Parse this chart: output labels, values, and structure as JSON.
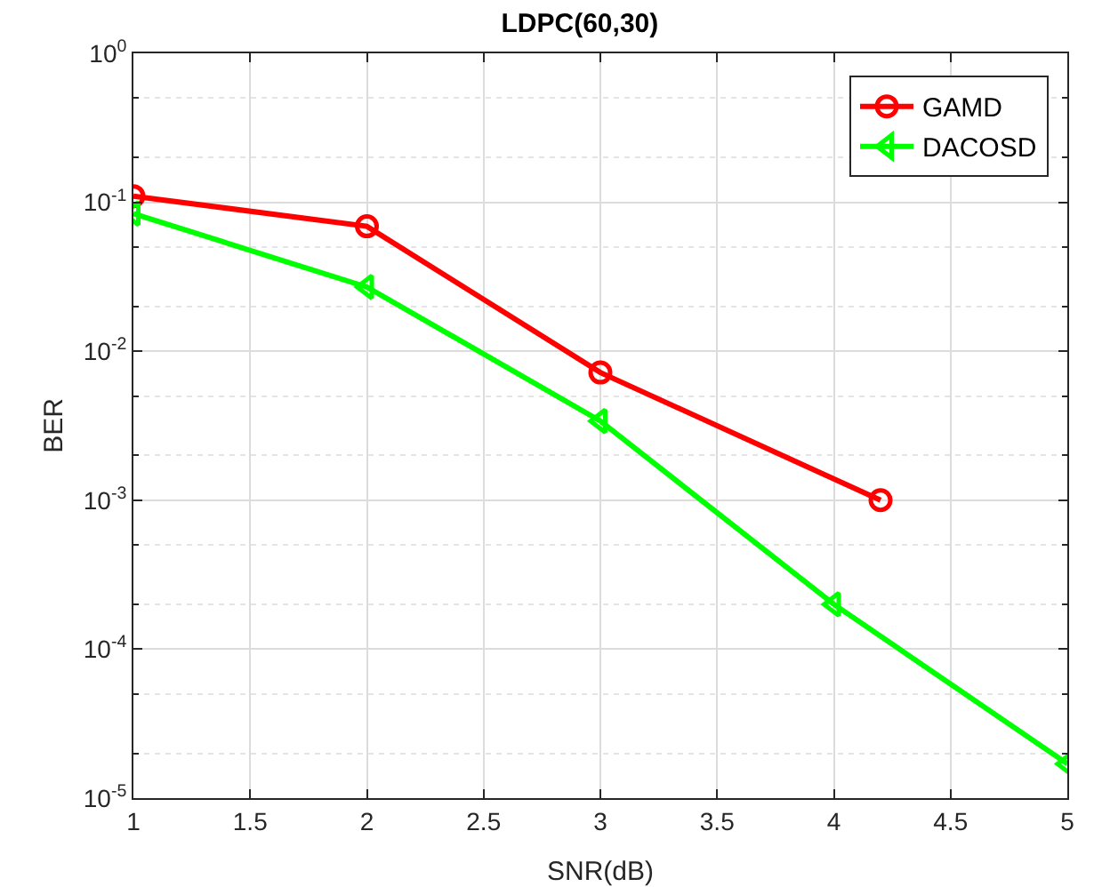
{
  "chart_data": {
    "type": "line",
    "title": "LDPC(60,30)",
    "xlabel": "SNR(dB)",
    "ylabel": "BER",
    "log": "y",
    "grid": true,
    "legend": "top right",
    "line_style": "solid",
    "xlim": [
      1,
      5
    ],
    "xticks": [
      1,
      1.5,
      2,
      2.5,
      3,
      3.5,
      4,
      4.5,
      5
    ],
    "ylim": [
      1e-05,
      1
    ],
    "yticks": [
      {
        "value": 1e-05,
        "label": "10$^{-5}$"
      },
      {
        "value": 0.0001,
        "label": "10$^{-4}$"
      },
      {
        "value": 0.001,
        "label": "10$^{-3}$"
      },
      {
        "value": 0.01,
        "label": "10$^{-2}$"
      },
      {
        "value": 0.1,
        "label": "10$^{-1}$"
      },
      {
        "value": 1,
        "label": "10$^{0}$"
      }
    ],
    "series": [
      {
        "name": "GAMD",
        "color": "#ff0000",
        "marker": "circle",
        "x": [
          1,
          2,
          3,
          4.2
        ],
        "values": [
          0.11,
          0.069,
          0.0072,
          0.001
        ]
      },
      {
        "name": "DACOSD",
        "color": "#00ff00",
        "marker": "triangle",
        "x": [
          1,
          2,
          3,
          4,
          5
        ],
        "values": [
          0.084,
          0.027,
          0.0034,
          0.0002,
          1.7e-05
        ]
      }
    ]
  }
}
